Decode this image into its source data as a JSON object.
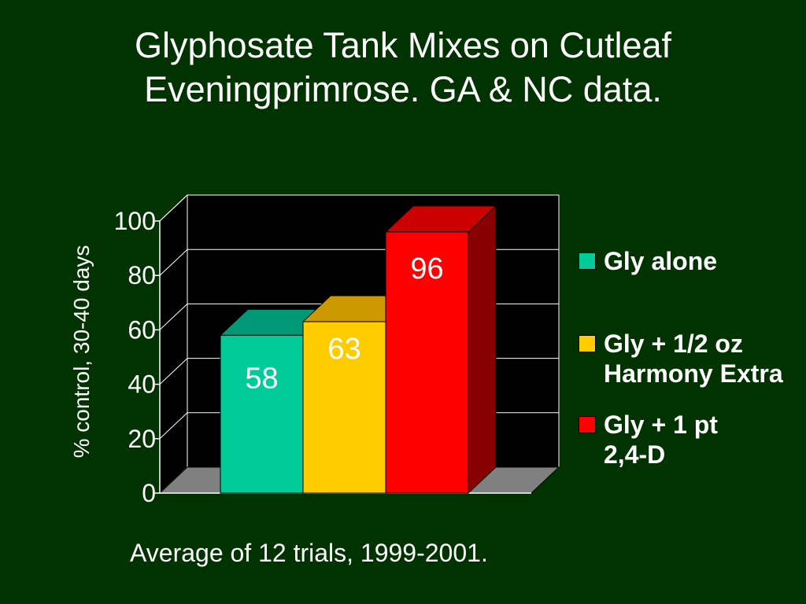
{
  "title": {
    "line1": "Glyphosate Tank Mixes on Cutleaf",
    "line2": "Eveningprimrose.  GA & NC data."
  },
  "caption": "Average of 12 trials, 1999-2001.",
  "chart_data": {
    "type": "bar",
    "style": "3d",
    "title": "",
    "xlabel": "",
    "ylabel": "% control, 30-40 days",
    "ylim": [
      0,
      100
    ],
    "yticks": [
      "0",
      "20",
      "40",
      "60",
      "80",
      "100"
    ],
    "grid": true,
    "legend_position": "right",
    "series": [
      {
        "name": "Gly alone",
        "legend_lines": [
          "Gly alone"
        ],
        "value": 58,
        "label": "58",
        "color": "#00CC99",
        "top_color": "#009977",
        "side_color": "#006655"
      },
      {
        "name": "Gly + 1/2 oz Harmony Extra",
        "legend_lines": [
          "Gly + 1/2 oz",
          "Harmony Extra"
        ],
        "value": 63,
        "label": "63",
        "color": "#FFCC00",
        "top_color": "#CC9900",
        "side_color": "#997700"
      },
      {
        "name": "Gly + 1 pt 2,4-D",
        "legend_lines": [
          "Gly + 1 pt",
          "2,4-D"
        ],
        "value": 96,
        "label": "96",
        "color": "#FF0000",
        "top_color": "#CC0000",
        "side_color": "#880000"
      }
    ],
    "colors": {
      "plot_background": "#000000",
      "floor": "#808080",
      "gridline": "#ffffff",
      "axis": "#ffffff"
    }
  }
}
